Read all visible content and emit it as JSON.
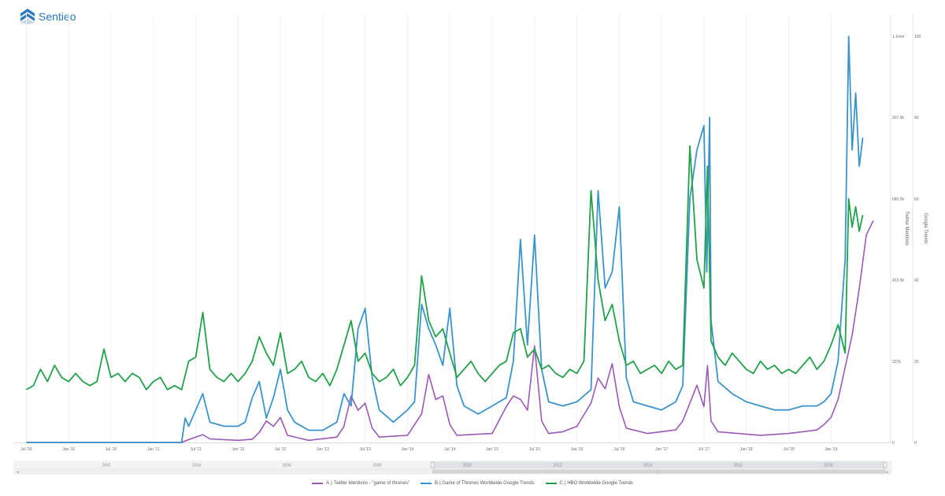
{
  "app": {
    "brand": "Sentieo"
  },
  "colors": {
    "twitter": "#9b59b6",
    "got": "#3a94cc",
    "hbo": "#22a14a",
    "grid": "#f0f0f0",
    "brand": "#2a78c2"
  },
  "chart_data": {
    "type": "line",
    "x_tick_labels": [
      "Jul '09",
      "Jan '10",
      "Jul '10",
      "Jan '11",
      "Jul '11",
      "Jan '12",
      "Jul '12",
      "Jan '13",
      "Jul '13",
      "Jan '14",
      "Jul '14",
      "Jan '15",
      "Jul '15",
      "Jan '16",
      "Jul '16",
      "Jan '17",
      "Jul '17",
      "Jan '18",
      "Jul '18",
      "Jan '19"
    ],
    "x_tick_months": [
      0,
      6,
      12,
      18,
      24,
      30,
      36,
      42,
      48,
      54,
      60,
      66,
      72,
      78,
      84,
      90,
      96,
      102,
      108,
      114
    ],
    "x_range_months": [
      -1.5,
      121
    ],
    "x_origin": "2009-07",
    "left_axis": {
      "title": "Twitter Mentions",
      "ticks": [
        "0",
        "227k",
        "453.9k",
        "680.9k",
        "907.9k",
        "1.1mm"
      ],
      "range": [
        0,
        1135000
      ]
    },
    "right_axis": {
      "title": "Google Trends",
      "ticks": [
        "0",
        "20",
        "40",
        "60",
        "80",
        "100"
      ],
      "range": [
        0,
        100
      ]
    },
    "navigator_labels": [
      "2002",
      "2004",
      "2006",
      "2008",
      "2010",
      "2012",
      "2014",
      "2016",
      "2018"
    ],
    "series": [
      {
        "name": "A.) Twitter Mentions - \"game of thrones\"",
        "key": "twitter",
        "axis": "left",
        "points": [
          [
            0,
            0
          ],
          [
            22,
            0
          ],
          [
            23,
            8000
          ],
          [
            24,
            15000
          ],
          [
            25,
            22000
          ],
          [
            26,
            10000
          ],
          [
            30,
            6000
          ],
          [
            32,
            9000
          ],
          [
            33,
            28000
          ],
          [
            34,
            60000
          ],
          [
            35,
            45000
          ],
          [
            36,
            70000
          ],
          [
            37,
            20000
          ],
          [
            40,
            6000
          ],
          [
            44,
            15000
          ],
          [
            45,
            45000
          ],
          [
            46,
            130000
          ],
          [
            47,
            90000
          ],
          [
            48,
            110000
          ],
          [
            49,
            40000
          ],
          [
            50,
            15000
          ],
          [
            54,
            20000
          ],
          [
            56,
            80000
          ],
          [
            57,
            190000
          ],
          [
            58,
            120000
          ],
          [
            59,
            130000
          ],
          [
            60,
            50000
          ],
          [
            61,
            20000
          ],
          [
            66,
            25000
          ],
          [
            68,
            100000
          ],
          [
            69,
            130000
          ],
          [
            70,
            120000
          ],
          [
            71,
            90000
          ],
          [
            72,
            270000
          ],
          [
            73,
            60000
          ],
          [
            74,
            25000
          ],
          [
            76,
            30000
          ],
          [
            78,
            45000
          ],
          [
            80,
            110000
          ],
          [
            81,
            180000
          ],
          [
            82,
            150000
          ],
          [
            83,
            220000
          ],
          [
            84,
            100000
          ],
          [
            85,
            40000
          ],
          [
            88,
            25000
          ],
          [
            92,
            35000
          ],
          [
            93,
            60000
          ],
          [
            94,
            110000
          ],
          [
            95,
            160000
          ],
          [
            96,
            100000
          ],
          [
            96.5,
            215000
          ],
          [
            97,
            60000
          ],
          [
            98,
            30000
          ],
          [
            104,
            20000
          ],
          [
            108,
            25000
          ],
          [
            112,
            35000
          ],
          [
            113,
            50000
          ],
          [
            114,
            70000
          ],
          [
            115,
            120000
          ],
          [
            116,
            210000
          ],
          [
            117,
            300000
          ],
          [
            118,
            430000
          ],
          [
            119,
            580000
          ],
          [
            120,
            620000
          ]
        ]
      },
      {
        "name": "B.) Game of Thrones Worldwide Google Trends",
        "key": "got",
        "axis": "right",
        "points": [
          [
            0,
            0
          ],
          [
            22,
            0
          ],
          [
            22.5,
            6
          ],
          [
            23,
            4
          ],
          [
            24,
            8
          ],
          [
            25,
            12
          ],
          [
            26,
            5
          ],
          [
            28,
            4
          ],
          [
            30,
            4
          ],
          [
            31,
            5
          ],
          [
            32,
            11
          ],
          [
            33,
            15
          ],
          [
            34,
            6
          ],
          [
            35,
            11
          ],
          [
            36,
            18
          ],
          [
            37,
            8
          ],
          [
            38,
            5
          ],
          [
            40,
            3
          ],
          [
            42,
            3
          ],
          [
            44,
            5
          ],
          [
            45,
            12
          ],
          [
            46,
            9
          ],
          [
            47,
            28
          ],
          [
            48,
            33
          ],
          [
            49,
            16
          ],
          [
            50,
            8
          ],
          [
            52,
            5
          ],
          [
            54,
            8
          ],
          [
            55,
            10
          ],
          [
            56,
            34
          ],
          [
            57,
            28
          ],
          [
            58,
            24
          ],
          [
            59,
            19
          ],
          [
            60,
            33
          ],
          [
            61,
            14
          ],
          [
            62,
            9
          ],
          [
            64,
            7
          ],
          [
            66,
            9
          ],
          [
            68,
            11
          ],
          [
            69,
            20
          ],
          [
            70,
            50
          ],
          [
            71,
            24
          ],
          [
            72,
            51
          ],
          [
            73,
            18
          ],
          [
            74,
            10
          ],
          [
            76,
            9
          ],
          [
            78,
            10
          ],
          [
            80,
            13
          ],
          [
            81,
            62
          ],
          [
            82,
            38
          ],
          [
            83,
            42
          ],
          [
            84,
            58
          ],
          [
            85,
            16
          ],
          [
            86,
            10
          ],
          [
            88,
            9
          ],
          [
            90,
            8
          ],
          [
            92,
            10
          ],
          [
            93,
            14
          ],
          [
            94,
            60
          ],
          [
            95,
            72
          ],
          [
            96,
            78
          ],
          [
            96.4,
            42
          ],
          [
            96.8,
            80
          ],
          [
            97,
            30
          ],
          [
            98,
            15
          ],
          [
            100,
            12
          ],
          [
            102,
            10
          ],
          [
            104,
            9
          ],
          [
            106,
            8
          ],
          [
            108,
            8
          ],
          [
            110,
            9
          ],
          [
            112,
            9
          ],
          [
            113,
            10
          ],
          [
            114,
            12
          ],
          [
            115,
            20
          ],
          [
            116,
            45
          ],
          [
            116.5,
            100
          ],
          [
            117,
            72
          ],
          [
            117.5,
            86
          ],
          [
            118,
            68
          ],
          [
            118.5,
            75
          ]
        ]
      },
      {
        "name": "C.) HBO Worldwide Google Trends",
        "key": "hbo",
        "axis": "right",
        "points": [
          [
            0,
            13
          ],
          [
            1,
            14
          ],
          [
            2,
            18
          ],
          [
            3,
            15
          ],
          [
            4,
            19
          ],
          [
            5,
            16
          ],
          [
            6,
            15
          ],
          [
            7,
            17
          ],
          [
            8,
            15
          ],
          [
            9,
            14
          ],
          [
            10,
            15
          ],
          [
            11,
            23
          ],
          [
            12,
            16
          ],
          [
            13,
            17
          ],
          [
            14,
            15
          ],
          [
            15,
            17
          ],
          [
            16,
            16
          ],
          [
            17,
            13
          ],
          [
            18,
            15
          ],
          [
            19,
            16
          ],
          [
            20,
            13
          ],
          [
            21,
            14
          ],
          [
            22,
            13
          ],
          [
            23,
            20
          ],
          [
            24,
            21
          ],
          [
            25,
            32
          ],
          [
            26,
            18
          ],
          [
            27,
            16
          ],
          [
            28,
            15
          ],
          [
            29,
            17
          ],
          [
            30,
            15
          ],
          [
            31,
            17
          ],
          [
            32,
            20
          ],
          [
            33,
            26
          ],
          [
            34,
            22
          ],
          [
            35,
            19
          ],
          [
            36,
            27
          ],
          [
            37,
            17
          ],
          [
            38,
            18
          ],
          [
            39,
            20
          ],
          [
            40,
            16
          ],
          [
            41,
            15
          ],
          [
            42,
            17
          ],
          [
            43,
            14
          ],
          [
            44,
            18
          ],
          [
            45,
            24
          ],
          [
            46,
            30
          ],
          [
            47,
            20
          ],
          [
            48,
            22
          ],
          [
            49,
            17
          ],
          [
            50,
            15
          ],
          [
            51,
            16
          ],
          [
            52,
            18
          ],
          [
            53,
            14
          ],
          [
            54,
            16
          ],
          [
            55,
            19
          ],
          [
            56,
            41
          ],
          [
            57,
            30
          ],
          [
            58,
            26
          ],
          [
            59,
            28
          ],
          [
            60,
            22
          ],
          [
            61,
            16
          ],
          [
            62,
            18
          ],
          [
            63,
            20
          ],
          [
            64,
            17
          ],
          [
            65,
            15
          ],
          [
            66,
            17
          ],
          [
            67,
            19
          ],
          [
            68,
            20
          ],
          [
            69,
            27
          ],
          [
            70,
            28
          ],
          [
            71,
            21
          ],
          [
            72,
            23
          ],
          [
            73,
            18
          ],
          [
            74,
            19
          ],
          [
            75,
            17
          ],
          [
            76,
            16
          ],
          [
            77,
            18
          ],
          [
            78,
            17
          ],
          [
            79,
            20
          ],
          [
            80,
            62
          ],
          [
            81,
            40
          ],
          [
            82,
            30
          ],
          [
            83,
            34
          ],
          [
            84,
            25
          ],
          [
            85,
            19
          ],
          [
            86,
            20
          ],
          [
            87,
            17
          ],
          [
            88,
            18
          ],
          [
            89,
            19
          ],
          [
            90,
            17
          ],
          [
            91,
            20
          ],
          [
            92,
            18
          ],
          [
            93,
            19
          ],
          [
            94,
            73
          ],
          [
            95,
            45
          ],
          [
            96,
            38
          ],
          [
            96.5,
            68
          ],
          [
            97,
            25
          ],
          [
            98,
            21
          ],
          [
            99,
            19
          ],
          [
            100,
            22
          ],
          [
            101,
            20
          ],
          [
            102,
            18
          ],
          [
            103,
            17
          ],
          [
            104,
            20
          ],
          [
            105,
            18
          ],
          [
            106,
            19
          ],
          [
            107,
            17
          ],
          [
            108,
            18
          ],
          [
            109,
            17
          ],
          [
            110,
            19
          ],
          [
            111,
            21
          ],
          [
            112,
            18
          ],
          [
            113,
            20
          ],
          [
            114,
            24
          ],
          [
            115,
            29
          ],
          [
            116,
            22
          ],
          [
            116.5,
            60
          ],
          [
            117,
            53
          ],
          [
            117.5,
            58
          ],
          [
            118,
            52
          ],
          [
            118.5,
            56
          ]
        ]
      }
    ]
  }
}
